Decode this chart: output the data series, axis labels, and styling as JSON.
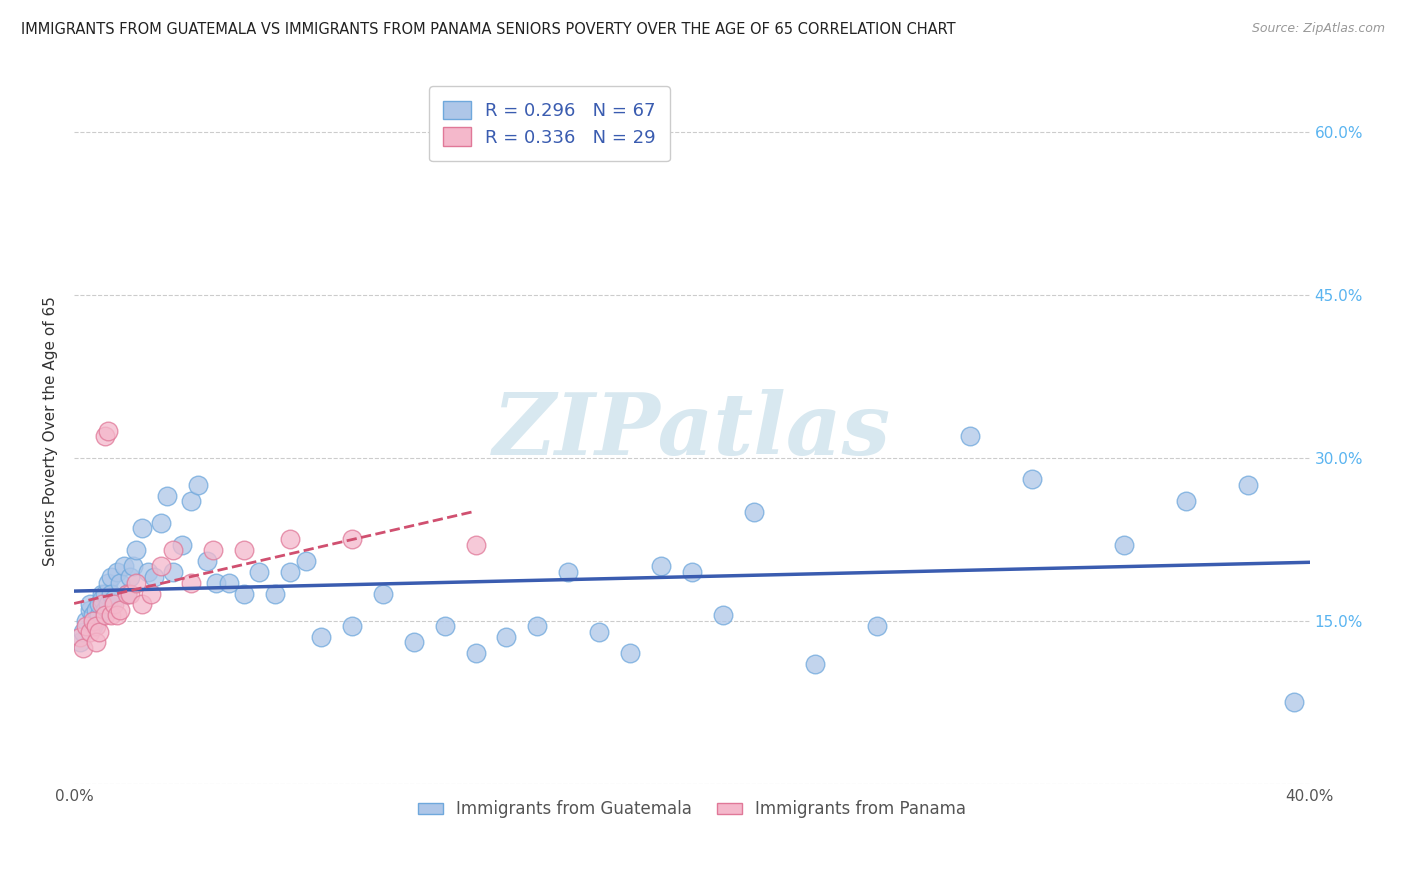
{
  "title": "IMMIGRANTS FROM GUATEMALA VS IMMIGRANTS FROM PANAMA SENIORS POVERTY OVER THE AGE OF 65 CORRELATION CHART",
  "source": "Source: ZipAtlas.com",
  "ylabel": "Seniors Poverty Over the Age of 65",
  "xlim": [
    0.0,
    0.4
  ],
  "ylim": [
    0.0,
    0.65
  ],
  "yticks": [
    0.0,
    0.15,
    0.3,
    0.45,
    0.6
  ],
  "ytick_labels_right": [
    "",
    "15.0%",
    "30.0%",
    "45.0%",
    "60.0%"
  ],
  "xticks": [
    0.0,
    0.1,
    0.2,
    0.3,
    0.4
  ],
  "xtick_labels": [
    "0.0%",
    "",
    "",
    "",
    "40.0%"
  ],
  "guatemala_color": "#aec6e8",
  "guatemala_edge": "#6fa8dc",
  "panama_color": "#f4b8cb",
  "panama_edge": "#e07898",
  "line_guatemala_color": "#3a5cb0",
  "line_panama_color": "#d05070",
  "R_guatemala": 0.296,
  "N_guatemala": 67,
  "R_panama": 0.336,
  "N_panama": 29,
  "legend_label_guatemala": "Immigrants from Guatemala",
  "legend_label_panama": "Immigrants from Panama",
  "background_color": "#ffffff",
  "grid_color": "#cccccc",
  "title_color": "#222222",
  "right_tick_color": "#5ab4f0",
  "watermark_text": "ZIPatlas",
  "watermark_color": "#d8e8f0",
  "scatter_alpha": 0.75,
  "scatter_size": 180,
  "guatemala_x": [
    0.002,
    0.003,
    0.004,
    0.005,
    0.005,
    0.006,
    0.006,
    0.007,
    0.007,
    0.008,
    0.008,
    0.009,
    0.009,
    0.01,
    0.01,
    0.011,
    0.011,
    0.012,
    0.012,
    0.013,
    0.014,
    0.015,
    0.016,
    0.017,
    0.018,
    0.019,
    0.02,
    0.022,
    0.024,
    0.026,
    0.028,
    0.03,
    0.032,
    0.035,
    0.038,
    0.04,
    0.043,
    0.046,
    0.05,
    0.055,
    0.06,
    0.065,
    0.07,
    0.075,
    0.08,
    0.09,
    0.1,
    0.11,
    0.12,
    0.13,
    0.14,
    0.15,
    0.16,
    0.17,
    0.18,
    0.19,
    0.2,
    0.21,
    0.22,
    0.24,
    0.26,
    0.29,
    0.31,
    0.34,
    0.36,
    0.38,
    0.395
  ],
  "guatemala_y": [
    0.13,
    0.14,
    0.15,
    0.16,
    0.165,
    0.145,
    0.155,
    0.15,
    0.16,
    0.155,
    0.165,
    0.175,
    0.17,
    0.16,
    0.175,
    0.165,
    0.185,
    0.19,
    0.175,
    0.17,
    0.195,
    0.185,
    0.2,
    0.175,
    0.19,
    0.2,
    0.215,
    0.235,
    0.195,
    0.19,
    0.24,
    0.265,
    0.195,
    0.22,
    0.26,
    0.275,
    0.205,
    0.185,
    0.185,
    0.175,
    0.195,
    0.175,
    0.195,
    0.205,
    0.135,
    0.145,
    0.175,
    0.13,
    0.145,
    0.12,
    0.135,
    0.145,
    0.195,
    0.14,
    0.12,
    0.2,
    0.195,
    0.155,
    0.25,
    0.11,
    0.145,
    0.32,
    0.28,
    0.22,
    0.26,
    0.275,
    0.075
  ],
  "panama_x": [
    0.002,
    0.003,
    0.004,
    0.005,
    0.006,
    0.007,
    0.007,
    0.008,
    0.009,
    0.01,
    0.01,
    0.011,
    0.012,
    0.013,
    0.014,
    0.015,
    0.017,
    0.018,
    0.02,
    0.022,
    0.025,
    0.028,
    0.032,
    0.038,
    0.045,
    0.055,
    0.07,
    0.09,
    0.13
  ],
  "panama_y": [
    0.135,
    0.125,
    0.145,
    0.14,
    0.15,
    0.145,
    0.13,
    0.14,
    0.165,
    0.155,
    0.32,
    0.325,
    0.155,
    0.165,
    0.155,
    0.16,
    0.175,
    0.175,
    0.185,
    0.165,
    0.175,
    0.2,
    0.215,
    0.185,
    0.215,
    0.215,
    0.225,
    0.225,
    0.22
  ],
  "panama_line_xmax": 0.13
}
